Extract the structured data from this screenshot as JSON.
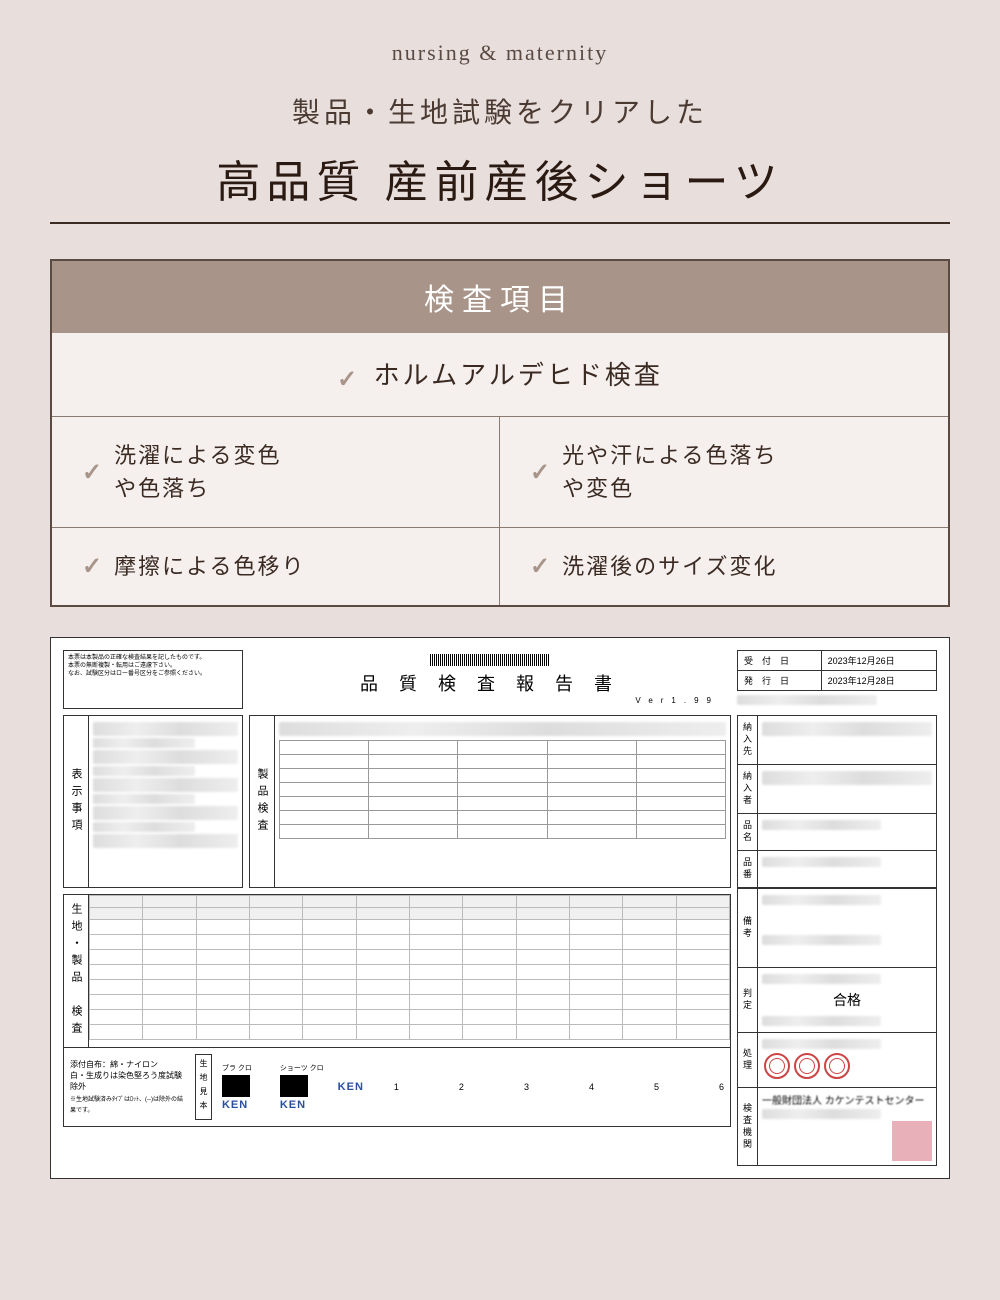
{
  "header": {
    "subtitle": "nursing & maternity",
    "tagline": "製品・生地試験をクリアした",
    "headline": "高品質 産前産後ショーツ"
  },
  "inspection": {
    "title": "検査項目",
    "items": {
      "main": "ホルムアルデヒド検査",
      "grid": [
        "洗濯による変色\nや色落ち",
        "光や汗による色落ち\nや変色",
        "摩擦による色移り",
        "洗濯後のサイズ変化"
      ]
    }
  },
  "report": {
    "title": "品 質 検 査 報 告 書",
    "version": "Ver1.99",
    "dates": {
      "received_label": "受　付　日",
      "received": "2023年12月26日",
      "issued_label": "発　行　日",
      "issued": "2023年12月28日"
    },
    "sections": {
      "display": "表示事項",
      "product": "製品検査",
      "fabric": "生地・製品　検査",
      "delivery": "納入先",
      "supplier": "納入者",
      "item_name": "品名",
      "item_no": "品番",
      "remarks": "備考",
      "judgment": "判定",
      "process": "処理",
      "institution": "検査機関"
    },
    "judgment_value": "合格",
    "footer": {
      "note1": "添付自布：綿・ナイロン",
      "note2": "白・生成りは染色堅ろう度試験除外",
      "note3": "※生地試験済みﾀｲﾌﾟはﾛｯﾄ、(--)は除外の結果です。",
      "sample_label": "生地見本",
      "labels": [
        "ブラ クロ",
        "ショーツ クロ"
      ],
      "ken": "KEN",
      "numbers": [
        "1",
        "2",
        "3",
        "4",
        "5",
        "6"
      ]
    },
    "colors": {
      "bg": "#e8dfdd",
      "accent": "#a89488",
      "text": "#3a2a22",
      "stamp": "#c44444"
    }
  }
}
